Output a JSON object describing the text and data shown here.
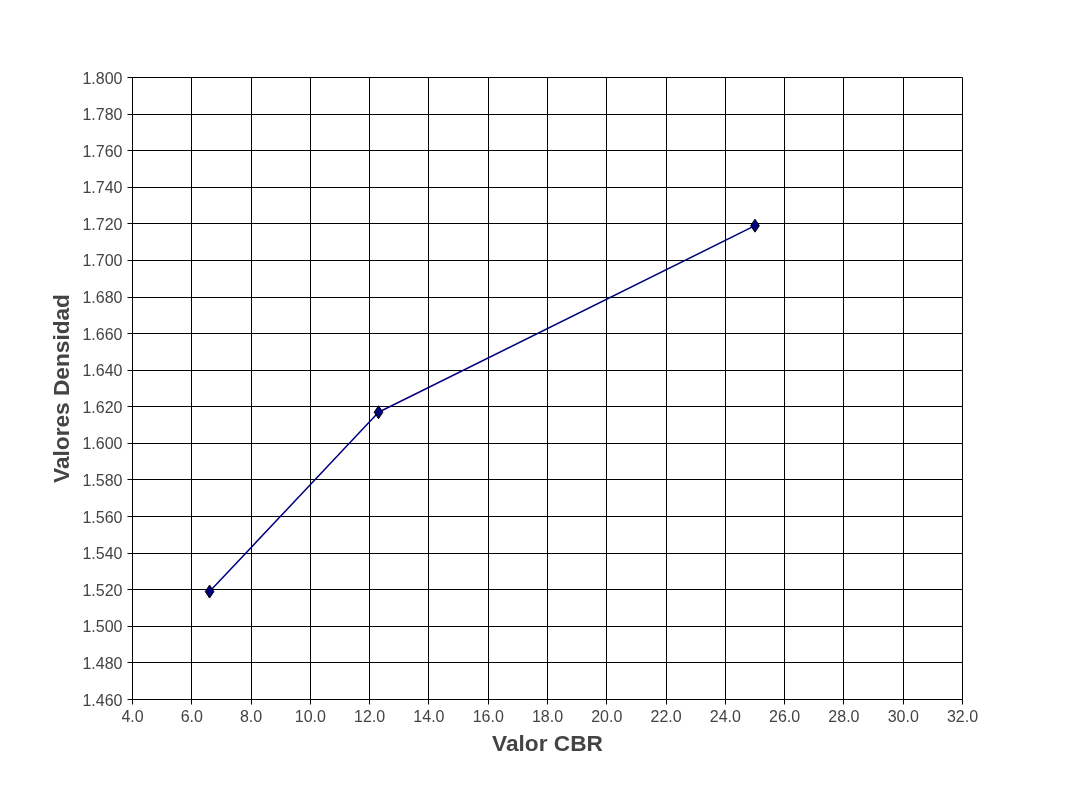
{
  "chart_data": {
    "type": "line",
    "xlabel": "Valor CBR",
    "ylabel": "Valores Densidad",
    "x": [
      6.6,
      12.3,
      25.0
    ],
    "series": [
      {
        "color": "#000080",
        "values": [
          1.519,
          1.617,
          1.719
        ]
      }
    ],
    "marker": "diamond",
    "line_style": "solid",
    "grid": true,
    "xlim": [
      4.0,
      32.0
    ],
    "xticks": [
      {
        "value": 4,
        "label": "4.0"
      },
      {
        "value": 6,
        "label": "6.0"
      },
      {
        "value": 8,
        "label": "8.0"
      },
      {
        "value": 10,
        "label": "10.0"
      },
      {
        "value": 12,
        "label": "12.0"
      },
      {
        "value": 14,
        "label": "14.0"
      },
      {
        "value": 16,
        "label": "16.0"
      },
      {
        "value": 18,
        "label": "18.0"
      },
      {
        "value": 20,
        "label": "20.0"
      },
      {
        "value": 22,
        "label": "22.0"
      },
      {
        "value": 24,
        "label": "24.0"
      },
      {
        "value": 26,
        "label": "26.0"
      },
      {
        "value": 28,
        "label": "28.0"
      },
      {
        "value": 30,
        "label": "30.0"
      },
      {
        "value": 32,
        "label": "32.0"
      }
    ],
    "ylim": [
      1.46,
      1.8
    ],
    "yticks": [
      {
        "value": 1.46,
        "label": "1.460"
      },
      {
        "value": 1.48,
        "label": "1.480"
      },
      {
        "value": 1.5,
        "label": "1.500"
      },
      {
        "value": 1.52,
        "label": "1.520"
      },
      {
        "value": 1.54,
        "label": "1.540"
      },
      {
        "value": 1.56,
        "label": "1.560"
      },
      {
        "value": 1.58,
        "label": "1.580"
      },
      {
        "value": 1.6,
        "label": "1.600"
      },
      {
        "value": 1.62,
        "label": "1.620"
      },
      {
        "value": 1.64,
        "label": "1.640"
      },
      {
        "value": 1.66,
        "label": "1.660"
      },
      {
        "value": 1.68,
        "label": "1.680"
      },
      {
        "value": 1.7,
        "label": "1.700"
      },
      {
        "value": 1.72,
        "label": "1.720"
      },
      {
        "value": 1.74,
        "label": "1.740"
      },
      {
        "value": 1.76,
        "label": "1.760"
      },
      {
        "value": 1.78,
        "label": "1.780"
      },
      {
        "value": 1.8,
        "label": "1.800"
      }
    ]
  }
}
